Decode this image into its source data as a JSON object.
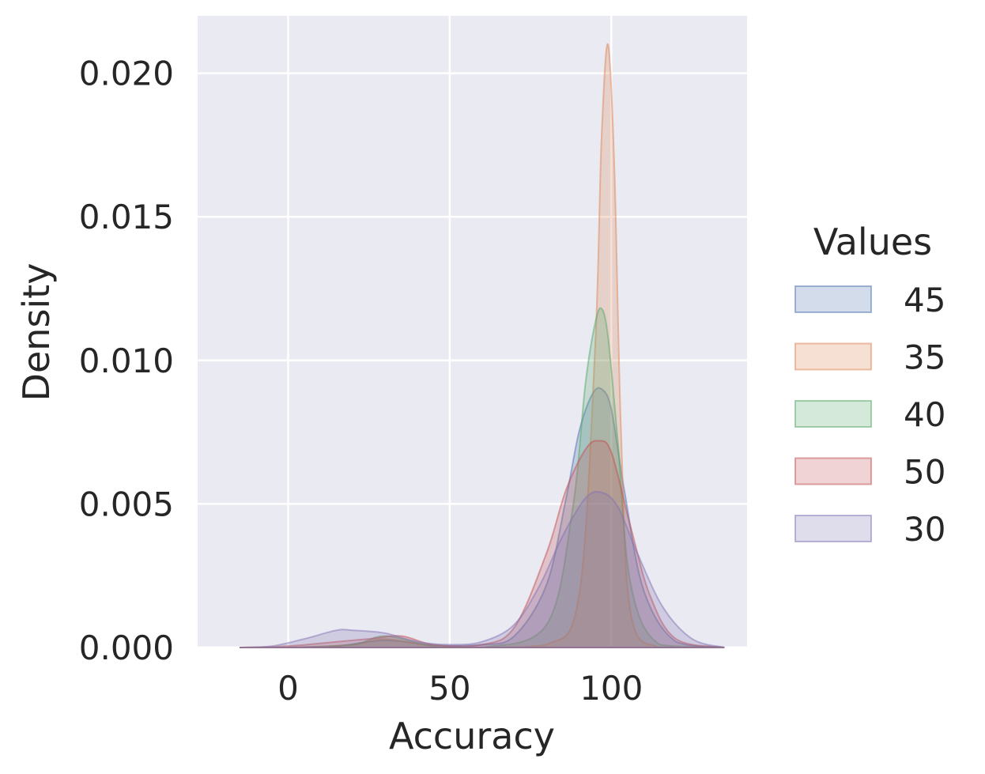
{
  "chart_data": {
    "type": "area",
    "subtype": "kde",
    "xlabel": "Accuracy",
    "ylabel": "Density",
    "xlim": [
      -28,
      142
    ],
    "ylim": [
      0,
      0.022
    ],
    "xticks": [
      0,
      50,
      100
    ],
    "yticks": [
      0.0,
      0.005,
      0.01,
      0.015,
      0.02
    ],
    "ytick_labels": [
      "0.000",
      "0.005",
      "0.010",
      "0.015",
      "0.020"
    ],
    "grid": true,
    "legend": {
      "title": "Values",
      "placement": "right",
      "entries": [
        "45",
        "35",
        "40",
        "50",
        "30"
      ]
    },
    "series": [
      {
        "name": "45",
        "color": "#4c72b0",
        "x": [
          -15,
          0,
          15,
          30,
          45,
          60,
          70,
          80,
          86,
          90,
          94,
          97,
          100,
          104,
          110,
          120,
          135
        ],
        "y": [
          0.0,
          0.0,
          5e-05,
          0.00025,
          8e-05,
          0.0001,
          0.0004,
          0.0022,
          0.0052,
          0.0075,
          0.0088,
          0.009,
          0.0083,
          0.0055,
          0.002,
          0.0002,
          0.0
        ]
      },
      {
        "name": "35",
        "color": "#dd8452",
        "x": [
          -15,
          0,
          20,
          30,
          45,
          60,
          80,
          90,
          95,
          97,
          99,
          101,
          103,
          106,
          115,
          135
        ],
        "y": [
          0.0,
          0.0,
          0.0001,
          0.0003,
          5e-05,
          0.0,
          0.0001,
          0.0018,
          0.0105,
          0.0178,
          0.021,
          0.0165,
          0.0075,
          0.0012,
          0.0,
          0.0
        ]
      },
      {
        "name": "40",
        "color": "#55a868",
        "x": [
          -15,
          0,
          20,
          30,
          45,
          60,
          80,
          88,
          92,
          95,
          97,
          99,
          102,
          106,
          115,
          135
        ],
        "y": [
          0.0,
          0.0,
          0.0001,
          0.0004,
          5e-05,
          0.0,
          0.0008,
          0.0048,
          0.0092,
          0.0113,
          0.0118,
          0.0108,
          0.0072,
          0.0022,
          0.0001,
          0.0
        ]
      },
      {
        "name": "50",
        "color": "#c44e52",
        "x": [
          -15,
          0,
          15,
          25,
          35,
          45,
          60,
          70,
          80,
          86,
          92,
          96,
          100,
          106,
          112,
          120,
          135
        ],
        "y": [
          0.0,
          5e-05,
          0.0002,
          0.0003,
          0.0004,
          0.0001,
          0.0001,
          0.0007,
          0.0033,
          0.0055,
          0.0069,
          0.0072,
          0.0068,
          0.0042,
          0.0018,
          0.0003,
          0.0
        ]
      },
      {
        "name": "30",
        "color": "#8172b3",
        "x": [
          -15,
          -5,
          5,
          15,
          20,
          30,
          40,
          50,
          60,
          70,
          78,
          85,
          92,
          97,
          102,
          108,
          116,
          125,
          135
        ],
        "y": [
          0.0,
          5e-05,
          0.0003,
          0.0006,
          0.0006,
          0.0005,
          0.0002,
          0.0001,
          0.0002,
          0.0008,
          0.0022,
          0.0039,
          0.0052,
          0.0054,
          0.0049,
          0.0033,
          0.0014,
          0.0003,
          0.0
        ]
      }
    ]
  }
}
